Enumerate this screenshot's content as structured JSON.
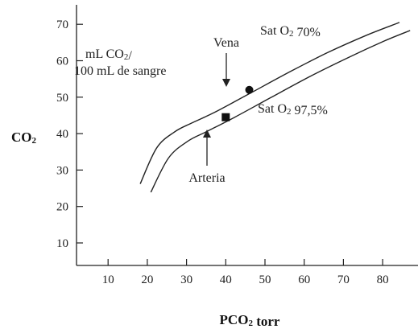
{
  "chart_data": {
    "type": "line",
    "xlabel": "PCO₂ torr",
    "ylabel": "CO₂",
    "xlim": [
      0,
      100
    ],
    "ylim": [
      0,
      78
    ],
    "x_ticks": [
      10,
      20,
      30,
      40,
      50,
      60,
      70,
      80
    ],
    "y_ticks": [
      10,
      20,
      30,
      40,
      50,
      60,
      70
    ],
    "units_note": "mL CO₂/\n100 mL de sangre",
    "series": [
      {
        "name": "Sat O₂ 70%",
        "x": [
          18.2,
          22.4,
          27.0,
          31.3,
          37.1,
          46.1,
          55.9,
          65.9,
          75.9,
          84.3
        ],
        "y": [
          26.2,
          36.1,
          40.5,
          42.9,
          45.8,
          51.0,
          56.7,
          62.2,
          67.0,
          70.5
        ]
      },
      {
        "name": "Sat O₂ 97,5%",
        "x": [
          20.9,
          25.4,
          30.3,
          35.2,
          42.3,
          51.5,
          61.5,
          71.5,
          80.4,
          87.0
        ],
        "y": [
          23.9,
          33.3,
          37.9,
          40.6,
          44.5,
          49.9,
          55.7,
          61.0,
          65.4,
          68.3
        ]
      }
    ],
    "points": [
      {
        "name": "Vena",
        "x": 46,
        "y": 52,
        "marker": "circle"
      },
      {
        "name": "Arteria",
        "x": 40,
        "y": 44.5,
        "marker": "square"
      }
    ]
  }
}
